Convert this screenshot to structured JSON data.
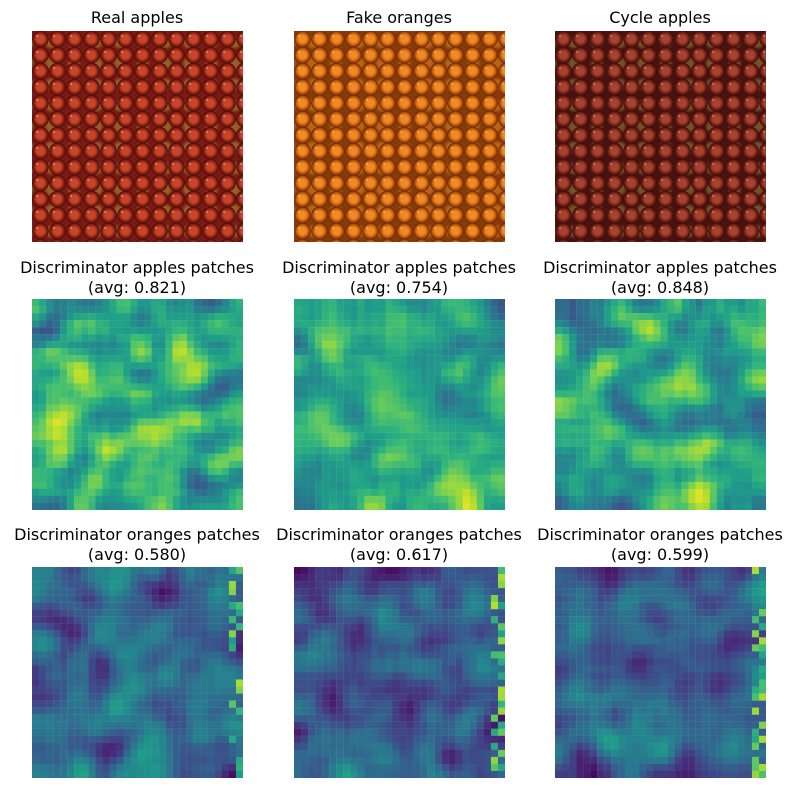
{
  "figure": {
    "row1": [
      {
        "title": "Real apples",
        "kind": "apples"
      },
      {
        "title": "Fake oranges",
        "kind": "oranges"
      },
      {
        "title": "Cycle apples",
        "kind": "apples-dark"
      }
    ],
    "row2": [
      {
        "title": "Discriminator apples patches",
        "avg": "(avg: 0.821)"
      },
      {
        "title": "Discriminator apples patches",
        "avg": "(avg: 0.754)"
      },
      {
        "title": "Discriminator apples patches",
        "avg": "(avg: 0.848)"
      }
    ],
    "row3": [
      {
        "title": "Discriminator oranges patches",
        "avg": "(avg: 0.580)"
      },
      {
        "title": "Discriminator oranges patches",
        "avg": "(avg: 0.617)"
      },
      {
        "title": "Discriminator oranges patches",
        "avg": "(avg: 0.599)"
      }
    ]
  },
  "chart_data": [
    {
      "type": "heatmap",
      "title": "Discriminator apples patches (avg: 0.821)",
      "colormap": "viridis",
      "grid": [
        30,
        30
      ],
      "mean": 0.821,
      "seed": 11
    },
    {
      "type": "heatmap",
      "title": "Discriminator apples patches (avg: 0.754)",
      "colormap": "viridis",
      "grid": [
        30,
        30
      ],
      "mean": 0.754,
      "seed": 23
    },
    {
      "type": "heatmap",
      "title": "Discriminator apples patches (avg: 0.848)",
      "colormap": "viridis",
      "grid": [
        30,
        30
      ],
      "mean": 0.848,
      "seed": 37
    },
    {
      "type": "heatmap",
      "title": "Discriminator oranges patches (avg: 0.580)",
      "colormap": "viridis",
      "grid": [
        30,
        30
      ],
      "mean": 0.58,
      "seed": 41
    },
    {
      "type": "heatmap",
      "title": "Discriminator oranges patches (avg: 0.617)",
      "colormap": "viridis",
      "grid": [
        30,
        30
      ],
      "mean": 0.617,
      "seed": 53
    },
    {
      "type": "heatmap",
      "title": "Discriminator oranges patches (avg: 0.599)",
      "colormap": "viridis",
      "grid": [
        30,
        30
      ],
      "mean": 0.599,
      "seed": 67
    }
  ]
}
